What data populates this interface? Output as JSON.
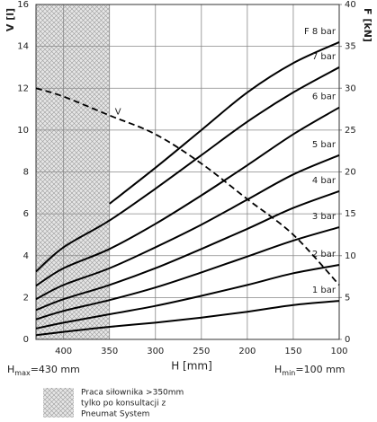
{
  "chart_data": {
    "type": "line",
    "xlabel": "H [mm]",
    "ylabel": "V [l]",
    "y2label": "F [kN]",
    "x": [
      430,
      400,
      350,
      300,
      250,
      200,
      150,
      100
    ],
    "xlim": [
      430,
      100
    ],
    "xticks": [
      400,
      350,
      300,
      250,
      200,
      150,
      100
    ],
    "ylim": [
      0,
      16
    ],
    "yticks": [
      0,
      2,
      4,
      6,
      8,
      10,
      12,
      14,
      16
    ],
    "y2lim": [
      0,
      40
    ],
    "y2ticks": [
      0,
      5,
      10,
      15,
      20,
      25,
      30,
      35,
      40
    ],
    "grid": true,
    "hatch_region": [
      430,
      350
    ],
    "series": [
      {
        "name": "F 8 bar",
        "color": "#000000",
        "axis": "y2",
        "values": [
          null,
          null,
          16.2,
          20.5,
          25,
          29.5,
          33,
          35.5
        ]
      },
      {
        "name": "7 bar",
        "color": "#000000",
        "axis": "y2",
        "values": [
          8.1,
          11,
          14.2,
          18,
          22,
          26,
          29.5,
          32.5
        ]
      },
      {
        "name": "6 bar",
        "color": "#000000",
        "axis": "y2",
        "values": [
          6.4,
          8.5,
          10.8,
          13.8,
          17.2,
          20.8,
          24.5,
          27.7
        ]
      },
      {
        "name": "5 bar",
        "color": "#000000",
        "axis": "y2",
        "values": [
          4.8,
          6.5,
          8.5,
          11,
          13.7,
          16.7,
          19.7,
          22
        ]
      },
      {
        "name": "4 bar",
        "color": "#000000",
        "axis": "y2",
        "values": [
          3.5,
          4.8,
          6.5,
          8.5,
          10.8,
          13.2,
          15.7,
          17.7
        ]
      },
      {
        "name": "3 bar",
        "color": "#000000",
        "axis": "y2",
        "values": [
          2.4,
          3.4,
          4.7,
          6.2,
          8,
          9.9,
          11.8,
          13.4
        ]
      },
      {
        "name": "2 bar",
        "color": "#000000",
        "axis": "y2",
        "values": [
          1.3,
          2,
          3,
          4,
          5.2,
          6.5,
          7.9,
          8.9
        ]
      },
      {
        "name": "1 bar",
        "color": "#000000",
        "axis": "y2",
        "values": [
          0.5,
          0.9,
          1.5,
          2,
          2.6,
          3.3,
          4.1,
          4.6
        ]
      },
      {
        "name": "V",
        "color": "#000000",
        "axis": "y",
        "dashed": true,
        "values": [
          12,
          11.6,
          10.7,
          9.8,
          8.4,
          6.7,
          5,
          2.6
        ]
      }
    ],
    "h_max": {
      "base": "H",
      "sub": "max",
      "rest": "=430 mm"
    },
    "h_min": {
      "base": "H",
      "sub": "min",
      "rest": "=100 mm"
    },
    "note": [
      "Praca siłownika >350mm",
      "tylko po konsultacji z",
      "Pneumat System"
    ]
  }
}
